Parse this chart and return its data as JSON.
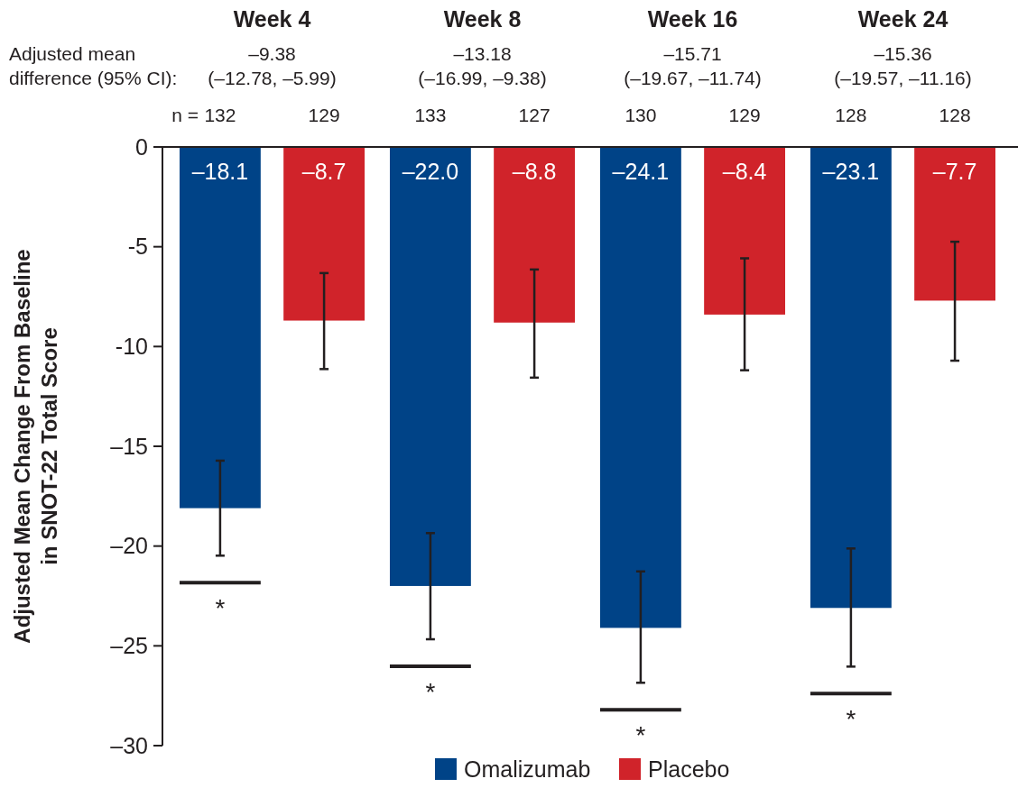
{
  "chart_data": {
    "type": "bar",
    "categories": [
      "Week 4",
      "Week 8",
      "Week 16",
      "Week 24"
    ],
    "ylabel": "Adjusted Mean Change From Baseline\nin SNOT-22 Total Score",
    "ylim": [
      -30,
      0
    ],
    "yticks": [
      {
        "value": -30,
        "label": "–30"
      },
      {
        "value": -25,
        "label": "–25"
      },
      {
        "value": -20,
        "label": "–20"
      },
      {
        "value": -15,
        "label": "–15"
      },
      {
        "value": -10,
        "label": "-10"
      },
      {
        "value": -5,
        "label": "-5"
      },
      0
    ],
    "series": [
      {
        "name": "Omalizumab",
        "color": "#004387",
        "values": [
          -18.1,
          -22.0,
          -24.1,
          -23.1
        ],
        "value_labels": [
          "–18.1",
          "–22.0",
          "–24.1",
          "–23.1"
        ],
        "errors": [
          [
            -20.48,
            -15.72
          ],
          [
            -24.67,
            -19.35
          ],
          [
            -26.85,
            -21.27
          ],
          [
            -26.04,
            -20.12
          ]
        ]
      },
      {
        "name": "Placebo",
        "color": "#d0232a",
        "values": [
          -8.7,
          -8.8,
          -8.4,
          -7.7
        ],
        "value_labels": [
          "–8.7",
          "–8.8",
          "–8.4",
          "–7.7"
        ],
        "errors": [
          [
            -11.13,
            -6.32
          ],
          [
            -11.56,
            -6.14
          ],
          [
            -11.19,
            -5.58
          ],
          [
            -10.71,
            -4.75
          ]
        ]
      }
    ],
    "legend": "bottom",
    "grid": false,
    "annotations": [
      "Adjusted mean\ndifference (95% CI):",
      "n  =",
      "–9.38\n(–12.78, –5.99)",
      "–13.18\n(–16.99, –9.38)",
      "–15.71\n(–19.67, –11.74)",
      "–15.36\n(–19.57, –11.16)",
      "132",
      "129",
      "133",
      "127",
      "130",
      "129",
      "128",
      "128",
      "*",
      "*",
      "*",
      "*"
    ]
  }
}
